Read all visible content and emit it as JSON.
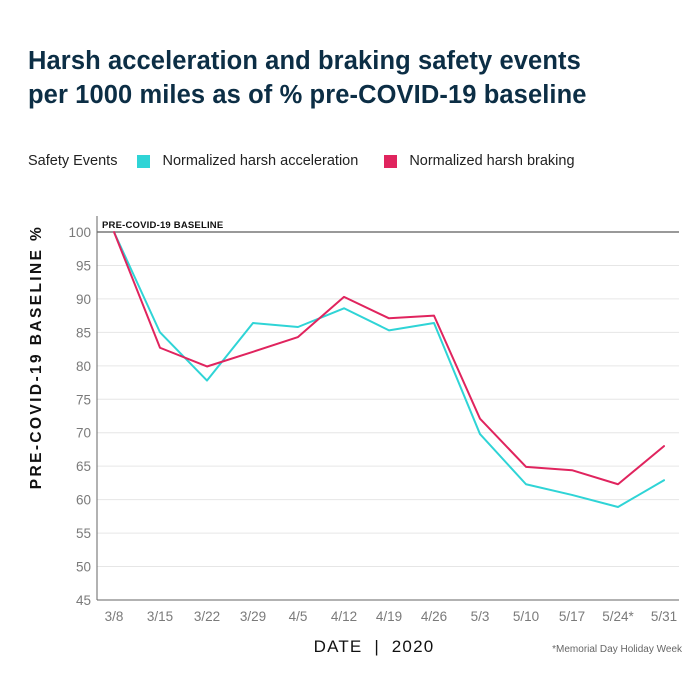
{
  "colors": {
    "acceleration": "#2fd4d6",
    "braking": "#e0245e",
    "title": "#0c2e45",
    "grid": "#e6e6e6",
    "axis": "#666666"
  },
  "chart_data": {
    "type": "line",
    "title": "Harsh acceleration and braking safety events per 1000 miles as of % pre-COVID-19 baseline",
    "title_lines": [
      "Harsh acceleration and braking safety events",
      "per 1000 miles as of % pre-COVID-19 baseline"
    ],
    "legend_title": "Safety Events",
    "legend_position": "top-left",
    "xlabel": "DATE  |  2020",
    "ylabel": "PRE-COVID-19 BASELINE %",
    "categories": [
      "3/8",
      "3/15",
      "3/22",
      "3/29",
      "4/5",
      "4/12",
      "4/19",
      "4/26",
      "5/3",
      "5/10",
      "5/17",
      "5/24*",
      "5/31"
    ],
    "yticks": [
      "100",
      "95",
      "90",
      "85",
      "80",
      "75",
      "70",
      "65",
      "60",
      "55",
      "50",
      "45"
    ],
    "ylim": [
      45,
      100
    ],
    "grid": true,
    "series": [
      {
        "name": "Normalized harsh acceleration",
        "color_key": "acceleration",
        "values": [
          100,
          85,
          77.8,
          86.4,
          85.8,
          88.6,
          85.3,
          86.4,
          69.8,
          62.3,
          60.7,
          58.9,
          62.9
        ]
      },
      {
        "name": "Normalized harsh braking",
        "color_key": "braking",
        "values": [
          100,
          82.7,
          79.9,
          82.1,
          84.3,
          90.3,
          87.1,
          87.5,
          72.1,
          64.9,
          64.4,
          62.3,
          68.0
        ]
      }
    ],
    "annotations": {
      "baseline": "PRE-COVID-19 BASELINE",
      "footnote": "*Memorial Day Holiday Week"
    }
  }
}
